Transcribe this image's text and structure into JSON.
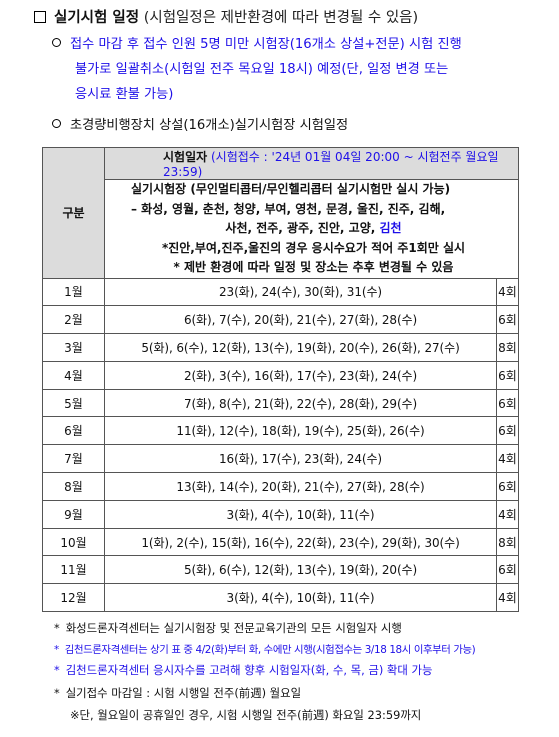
{
  "heading": {
    "title": "실기시험 일정",
    "note": "(시험일정은 제반환경에 따라 변경될 수 있음)"
  },
  "bullets": {
    "cancel_line1": "접수 마감 후 접수 인원 5명 미만 시험장(16개소 상설+전문) 시험 진행",
    "cancel_line2": "불가로 일괄취소(시험일 전주 목요일 18시) 예정(단, 일정 변경 또는",
    "cancel_line3": "응시료 환불 가능)",
    "schedule_title": "초경량비행장치 상설(16개소)실기시험장 시험일정"
  },
  "table": {
    "gubun": "구분",
    "header_label": "시험일자",
    "header_detail": "(시험접수 : '24년 01월 04일 20:00 ~ 시험전주 월요일 23:59)",
    "info": {
      "line1": "실기시험장 (무인멀티콥터/무인헬리콥터 실기시험만 실시 가능)",
      "line2": "– 화성, 영월, 춘천, 청양, 부여, 영천, 문경, 울진, 진주, 김해,",
      "line3a": "사천, 전주, 광주, 진안, 고양, ",
      "line3b": "김천",
      "line4": "*진안,부여,진주,울진의 경우 응시수요가 적어 주1회만 실시",
      "line5": "* 제반 환경에 따라 일정 및 장소는 추후 변경될 수 있음"
    },
    "rows": [
      {
        "month": "1월",
        "dates": "23(화), 24(수), 30(화), 31(수)",
        "count": "4회"
      },
      {
        "month": "2월",
        "dates": "6(화), 7(수), 20(화), 21(수), 27(화), 28(수)",
        "count": "6회"
      },
      {
        "month": "3월",
        "dates": "5(화), 6(수), 12(화), 13(수), 19(화), 20(수), 26(화), 27(수)",
        "count": "8회"
      },
      {
        "month": "4월",
        "dates": "2(화), 3(수), 16(화), 17(수), 23(화), 24(수)",
        "count": "6회"
      },
      {
        "month": "5월",
        "dates": "7(화), 8(수), 21(화), 22(수), 28(화), 29(수)",
        "count": "6회"
      },
      {
        "month": "6월",
        "dates": "11(화), 12(수), 18(화), 19(수), 25(화), 26(수)",
        "count": "6회"
      },
      {
        "month": "7월",
        "dates": "16(화), 17(수), 23(화), 24(수)",
        "count": "4회"
      },
      {
        "month": "8월",
        "dates": "13(화), 14(수), 20(화), 21(수), 27(화), 28(수)",
        "count": "6회"
      },
      {
        "month": "9월",
        "dates": "3(화), 4(수), 10(화), 11(수)",
        "count": "4회"
      },
      {
        "month": "10월",
        "dates": "1(화), 2(수), 15(화), 16(수), 22(화), 23(수), 29(화), 30(수)",
        "count": "8회"
      },
      {
        "month": "11월",
        "dates": "5(화), 6(수), 12(화), 13(수), 19(화), 20(수)",
        "count": "6회"
      },
      {
        "month": "12월",
        "dates": "3(화), 4(수), 10(화), 11(수)",
        "count": "4회"
      }
    ]
  },
  "footnotes": {
    "f1": "화성드론자격센터는 실기시험장 및 전문교육기관의 모든 시험일자 시행",
    "f2": "김천드론자격센터는 상기 표 중 4/2(화)부터 화, 수에만 시행(시험접수는 3/18 18시 이후부터 가능)",
    "f3": "김천드론자격센터 응시자수를 고려해 향후 시험일자(화, 수, 목, 금) 확대 가능",
    "f4": "실기접수 마감일 : 시험 시행일 전주(前週) 월요일",
    "f5": "※단, 월요일이 공휴일인 경우, 시험 시행일 전주(前週) 화요일 23:59까지"
  }
}
